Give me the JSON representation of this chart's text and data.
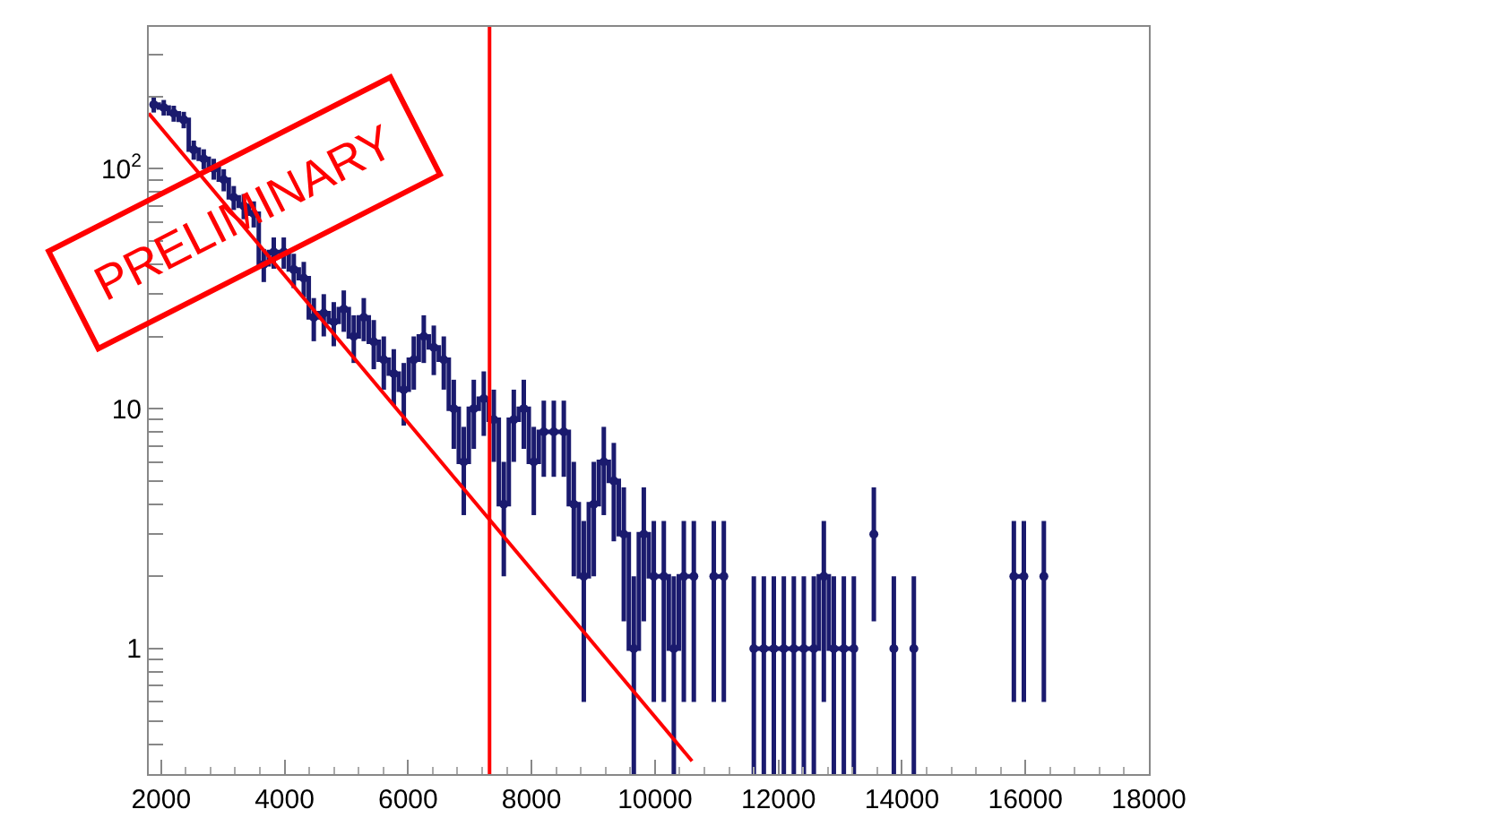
{
  "chart_data": {
    "type": "step",
    "log": "y",
    "marker": "circle",
    "x": [
      1881,
      2043,
      2205,
      2367,
      2529,
      2691,
      2853,
      3015,
      3177,
      3339,
      3501,
      3663,
      3825,
      3987,
      4149,
      4311,
      4473,
      4635,
      4797,
      4959,
      5121,
      5283,
      5445,
      5607,
      5769,
      5931,
      6093,
      6255,
      6417,
      6579,
      6741,
      6903,
      7065,
      7227,
      7389,
      7551,
      7713,
      7875,
      8037,
      8199,
      8361,
      8523,
      8685,
      8847,
      9009,
      9171,
      9333,
      9495,
      9657,
      9819,
      9981,
      10143,
      10305,
      10467,
      10629,
      10791,
      10953,
      11115,
      11277,
      11439,
      11601,
      11763,
      11925,
      12087,
      12249,
      12411,
      12573,
      12735,
      12897,
      13059,
      13221,
      13383,
      13545,
      13707,
      13869,
      14031,
      14193,
      14355,
      14517,
      14679,
      14841,
      15003,
      15165,
      15327,
      15489,
      15651,
      15813,
      15975,
      16137,
      16299
    ],
    "values": [
      185,
      180,
      170,
      160,
      120,
      110,
      100,
      90,
      76,
      70,
      65,
      40,
      45,
      45,
      38,
      35,
      24,
      25,
      23,
      26,
      20,
      24,
      19,
      16,
      14,
      12,
      16,
      20,
      18,
      16,
      10,
      6,
      10,
      11,
      9,
      4,
      9,
      10,
      6,
      8,
      8,
      8,
      4,
      2,
      4,
      6,
      5,
      3,
      1,
      3,
      2,
      2,
      1,
      2,
      2,
      null,
      2,
      2,
      null,
      null,
      1,
      1,
      1,
      1,
      1,
      1,
      1,
      2,
      1,
      1,
      1,
      null,
      3,
      null,
      1,
      null,
      1,
      null,
      null,
      null,
      null,
      null,
      null,
      null,
      null,
      null,
      2,
      2,
      null,
      2
    ],
    "errors": [
      13.6,
      13.4,
      13,
      12.6,
      11,
      10.5,
      10,
      9.5,
      8.7,
      8.4,
      8.1,
      6.3,
      6.7,
      6.7,
      6.2,
      5.9,
      4.9,
      5,
      4.8,
      5.1,
      4.5,
      4.9,
      4.4,
      4,
      3.7,
      3.5,
      4,
      4.5,
      4.2,
      4,
      3.2,
      2.4,
      3.2,
      3.3,
      3,
      2,
      3,
      3.2,
      2.4,
      2.8,
      2.8,
      2.8,
      2,
      1.4,
      2,
      2.4,
      2.2,
      1.7,
      [
        0.3,
        2
      ],
      1.7,
      1.4,
      1.4,
      [
        0.3,
        2
      ],
      1.4,
      1.4,
      null,
      1.4,
      1.4,
      null,
      null,
      [
        0.3,
        2
      ],
      [
        0.3,
        2
      ],
      [
        0.3,
        2
      ],
      [
        0.3,
        2
      ],
      [
        0.3,
        2
      ],
      [
        0.3,
        2
      ],
      [
        0.3,
        2
      ],
      1.4,
      [
        0.3,
        2
      ],
      [
        0.3,
        2
      ],
      [
        0.3,
        2
      ],
      null,
      1.7,
      null,
      [
        0.3,
        2
      ],
      null,
      [
        0.3,
        2
      ],
      null,
      null,
      null,
      null,
      null,
      null,
      null,
      null,
      null,
      1.4,
      1.4,
      null,
      1.4
    ],
    "color": "#1a1a6e",
    "series": [
      {
        "type": "line",
        "color": "#ff0000",
        "marker": "none",
        "x": [
          1800,
          10600
        ],
        "values": [
          170,
          0.34
        ]
      }
    ],
    "ref_lines": [
      {
        "axis": "x",
        "value": 7320,
        "color": "#ff0000"
      }
    ],
    "annotations": [
      "PRELIMINARY"
    ],
    "xlim": [
      1800,
      18000
    ],
    "xticks": [
      2000,
      4000,
      6000,
      8000,
      10000,
      12000,
      14000,
      16000,
      18000
    ],
    "ylim": [
      0.3,
      390
    ],
    "yticks": [
      {
        "value": 0.4,
        "label": null
      },
      {
        "value": 0.5,
        "label": null
      },
      {
        "value": 0.6,
        "label": null
      },
      {
        "value": 0.7,
        "label": null
      },
      {
        "value": 0.8,
        "label": null
      },
      {
        "value": 0.9,
        "label": null
      },
      1,
      {
        "value": 2,
        "label": null
      },
      {
        "value": 3,
        "label": null
      },
      {
        "value": 4,
        "label": null
      },
      {
        "value": 5,
        "label": null
      },
      {
        "value": 6,
        "label": null
      },
      {
        "value": 7,
        "label": null
      },
      {
        "value": 8,
        "label": null
      },
      {
        "value": 9,
        "label": null
      },
      10,
      {
        "value": 20,
        "label": null
      },
      {
        "value": 30,
        "label": null
      },
      {
        "value": 40,
        "label": null
      },
      {
        "value": 50,
        "label": null
      },
      {
        "value": 60,
        "label": null
      },
      {
        "value": 70,
        "label": null
      },
      {
        "value": 80,
        "label": null
      },
      {
        "value": 90,
        "label": null
      },
      {
        "value": 100,
        "label": "10$^{2}$"
      },
      {
        "value": 200,
        "label": null
      },
      {
        "value": 300,
        "label": null
      }
    ]
  }
}
